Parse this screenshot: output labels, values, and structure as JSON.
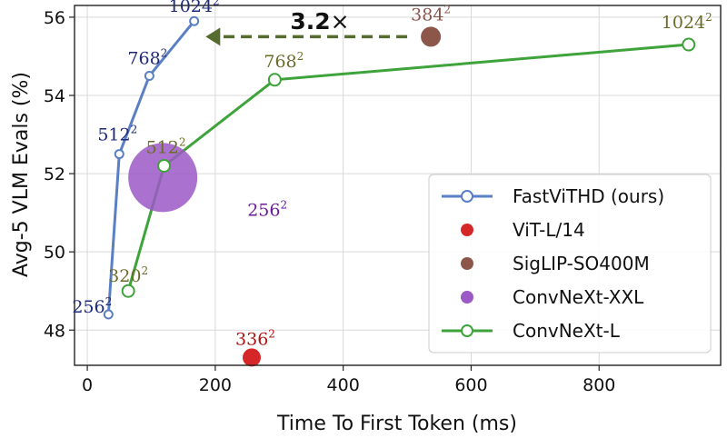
{
  "chart_data": {
    "type": "line",
    "xlabel": "Time To First Token (ms)",
    "ylabel": "Avg-5 VLM Evals (%)",
    "xlim": [
      -20,
      990
    ],
    "ylim": [
      47.1,
      56.3
    ],
    "xticks": [
      0,
      200,
      400,
      600,
      800
    ],
    "yticks": [
      48,
      50,
      52,
      54,
      56
    ],
    "xtick_labels": [
      "0",
      "200",
      "400",
      "600",
      "800"
    ],
    "ytick_labels": [
      "48",
      "50",
      "52",
      "54",
      "56"
    ],
    "grid": true,
    "legend_position": "right",
    "series": [
      {
        "name": "FastViTHD (ours)",
        "kind": "line",
        "color": "#5b7fc4",
        "label_color": "#1f2a7a",
        "points": [
          {
            "x": 33,
            "y": 48.4,
            "label": "256²"
          },
          {
            "x": 50,
            "y": 52.5,
            "label": "512²"
          },
          {
            "x": 97,
            "y": 54.5,
            "label": "768²"
          },
          {
            "x": 167,
            "y": 55.9,
            "label": "1024²"
          }
        ]
      },
      {
        "name": "ViT-L/14",
        "kind": "scatter",
        "color": "#d62728",
        "label_color": "#b01515",
        "points": [
          {
            "x": 257,
            "y": 47.3,
            "label": "336²",
            "size": 10
          }
        ]
      },
      {
        "name": "SigLIP-SO400M",
        "kind": "scatter",
        "color": "#8c564b",
        "label_color": "#8c564b",
        "points": [
          {
            "x": 537,
            "y": 55.5,
            "label": "384²",
            "size": 11
          }
        ]
      },
      {
        "name": "ConvNeXt-XXL",
        "kind": "scatter",
        "color": "#9b59c6",
        "label_color": "#6a1b9a",
        "points": [
          {
            "x": 118,
            "y": 51.9,
            "label": "256²",
            "size": 38
          }
        ]
      },
      {
        "name": "ConvNeXt-L",
        "kind": "line",
        "color": "#3ea33a",
        "label_color": "#6b6b2a",
        "points": [
          {
            "x": 64,
            "y": 49.0,
            "label": "320²"
          },
          {
            "x": 120,
            "y": 52.2,
            "label": "512²"
          },
          {
            "x": 293,
            "y": 54.4,
            "label": "768²"
          },
          {
            "x": 940,
            "y": 55.3,
            "label": "1024²"
          }
        ]
      }
    ],
    "annotation": {
      "text_bold": "3.2",
      "text_suffix": "×",
      "from_x": 500,
      "to_x": 185,
      "y": 55.5,
      "color": "#556b2f"
    }
  }
}
